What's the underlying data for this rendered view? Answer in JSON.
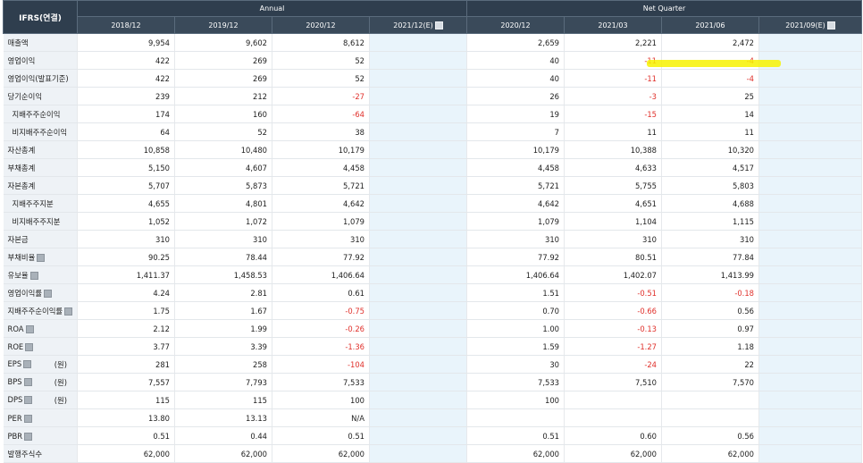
{
  "header": {
    "corner": "IFRS(연결)",
    "annual": "Annual",
    "quarter": "Net Quarter",
    "annual_cols": [
      "2018/12",
      "2019/12",
      "2020/12",
      "2021/12(E)"
    ],
    "quarter_cols": [
      "2020/12",
      "2021/03",
      "2021/06",
      "2021/09(E)"
    ]
  },
  "rows": [
    {
      "label": "매출액",
      "v": [
        "9,954",
        "9,602",
        "8,612",
        "",
        "2,659",
        "2,221",
        "2,472",
        ""
      ]
    },
    {
      "label": "영업이익",
      "v": [
        "422",
        "269",
        "52",
        "",
        "40",
        "-11",
        "-4",
        ""
      ]
    },
    {
      "label": "영업이익(발표기준)",
      "v": [
        "422",
        "269",
        "52",
        "",
        "40",
        "-11",
        "-4",
        ""
      ]
    },
    {
      "label": "당기순이익",
      "v": [
        "239",
        "212",
        "-27",
        "",
        "26",
        "-3",
        "25",
        ""
      ]
    },
    {
      "label": "지배주주순이익",
      "v": [
        "174",
        "160",
        "-64",
        "",
        "19",
        "-15",
        "14",
        ""
      ]
    },
    {
      "label": "비지배주주순이익",
      "v": [
        "64",
        "52",
        "38",
        "",
        "7",
        "11",
        "11",
        ""
      ]
    },
    {
      "label": "자산총계",
      "v": [
        "10,858",
        "10,480",
        "10,179",
        "",
        "10,179",
        "10,388",
        "10,320",
        ""
      ]
    },
    {
      "label": "부채총계",
      "v": [
        "5,150",
        "4,607",
        "4,458",
        "",
        "4,458",
        "4,633",
        "4,517",
        ""
      ]
    },
    {
      "label": "자본총계",
      "v": [
        "5,707",
        "5,873",
        "5,721",
        "",
        "5,721",
        "5,755",
        "5,803",
        ""
      ]
    },
    {
      "label": "지배주주지분",
      "v": [
        "4,655",
        "4,801",
        "4,642",
        "",
        "4,642",
        "4,651",
        "4,688",
        ""
      ]
    },
    {
      "label": "비지배주주지분",
      "v": [
        "1,052",
        "1,072",
        "1,079",
        "",
        "1,079",
        "1,104",
        "1,115",
        ""
      ]
    },
    {
      "label": "자본금",
      "v": [
        "310",
        "310",
        "310",
        "",
        "310",
        "310",
        "310",
        ""
      ]
    },
    {
      "label": "부채비율",
      "v": [
        "90.25",
        "78.44",
        "77.92",
        "",
        "77.92",
        "80.51",
        "77.84",
        ""
      ]
    },
    {
      "label": "유보율",
      "v": [
        "1,411.37",
        "1,458.53",
        "1,406.64",
        "",
        "1,406.64",
        "1,402.07",
        "1,413.99",
        ""
      ]
    },
    {
      "label": "영업이익률",
      "v": [
        "4.24",
        "2.81",
        "0.61",
        "",
        "1.51",
        "-0.51",
        "-0.18",
        ""
      ]
    },
    {
      "label": "지배주주순이익률",
      "v": [
        "1.75",
        "1.67",
        "-0.75",
        "",
        "0.70",
        "-0.66",
        "0.56",
        ""
      ]
    },
    {
      "label": "ROA",
      "v": [
        "2.12",
        "1.99",
        "-0.26",
        "",
        "1.00",
        "-0.13",
        "0.97",
        ""
      ]
    },
    {
      "label": "ROE",
      "v": [
        "3.77",
        "3.39",
        "-1.36",
        "",
        "1.59",
        "-1.27",
        "1.18",
        ""
      ]
    },
    {
      "label": "EPS",
      "unit": "(원)",
      "v": [
        "281",
        "258",
        "-104",
        "",
        "30",
        "-24",
        "22",
        ""
      ]
    },
    {
      "label": "BPS",
      "unit": "(원)",
      "v": [
        "7,557",
        "7,793",
        "7,533",
        "",
        "7,533",
        "7,510",
        "7,570",
        ""
      ]
    },
    {
      "label": "DPS",
      "unit": "(원)",
      "v": [
        "115",
        "115",
        "100",
        "",
        "100",
        "",
        "",
        ""
      ]
    },
    {
      "label": "PER",
      "v": [
        "13.80",
        "13.13",
        "N/A",
        "",
        "",
        "",
        "",
        ""
      ]
    },
    {
      "label": "PBR",
      "v": [
        "0.51",
        "0.44",
        "0.51",
        "",
        "0.51",
        "0.60",
        "0.56",
        ""
      ]
    },
    {
      "label": "발행주식수",
      "v": [
        "62,000",
        "62,000",
        "62,000",
        "",
        "62,000",
        "62,000",
        "62,000",
        ""
      ]
    }
  ],
  "colors": {
    "header_bg": "#3a4a5a",
    "label_bg": "#eef2f6",
    "estimate_bg": "#e9f4fb",
    "negative": "#e0312c",
    "highlight": "#f7f200"
  }
}
